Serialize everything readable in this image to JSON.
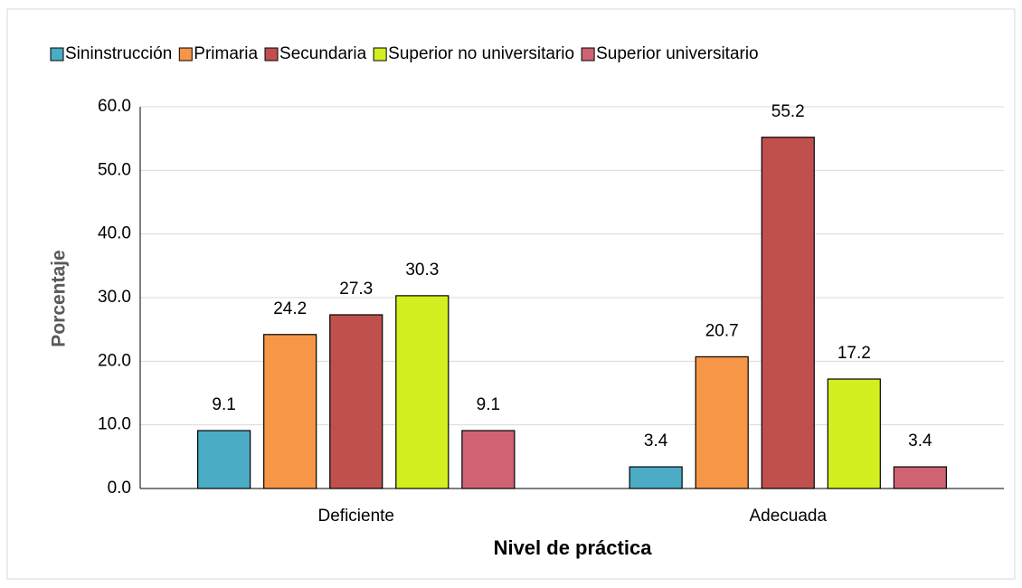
{
  "chart_data": {
    "type": "bar",
    "categories": [
      "Deficiente",
      "Adecuada"
    ],
    "series": [
      {
        "name": "Sininstrucción",
        "color": "#4bacc6",
        "values": [
          9.1,
          3.4
        ]
      },
      {
        "name": "Primaria",
        "color": "#f79646",
        "values": [
          24.2,
          20.7
        ]
      },
      {
        "name": "Secundaria",
        "color": "#c0504d",
        "values": [
          27.3,
          55.2
        ]
      },
      {
        "name": "Superior no universitario",
        "color": "#d4ef1f",
        "values": [
          30.3,
          17.2
        ]
      },
      {
        "name": "Superior universitario",
        "color": "#cf6373",
        "values": [
          9.1,
          3.4
        ]
      }
    ],
    "ylim": [
      0,
      60
    ],
    "yticks": [
      {
        "value": 0,
        "label": "0.0"
      },
      {
        "value": 10,
        "label": "10.0"
      },
      {
        "value": 20,
        "label": "20.0"
      },
      {
        "value": 30,
        "label": "30.0"
      },
      {
        "value": 40,
        "label": "40.0"
      },
      {
        "value": 50,
        "label": "50.0"
      },
      {
        "value": 60,
        "label": "60.0"
      }
    ],
    "xlabel": "Nivel de práctica",
    "ylabel": "Porcentaje",
    "grid": true,
    "legend": "top"
  }
}
